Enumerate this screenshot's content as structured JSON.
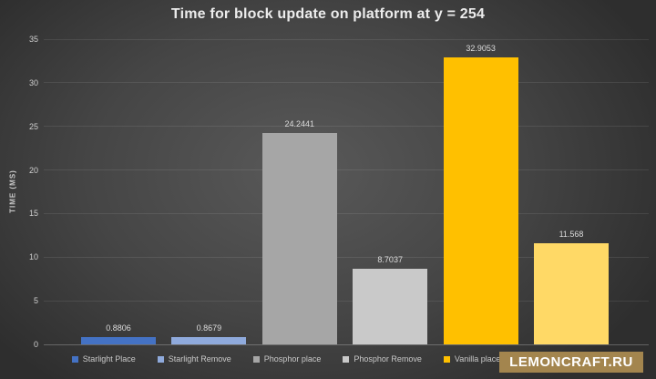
{
  "title": "Time for block update on platform at y = 254",
  "watermark": {
    "text": "LEMONCRAFT.RU",
    "background": "#A3854E",
    "text_color": "#FFFFFF"
  },
  "colors": {
    "background_center": "#595959",
    "background_edge": "#2E2E2E",
    "gridline": "rgba(255,255,255,0.09)",
    "axis_line": "rgba(255,255,255,0.25)",
    "text": "#D9D9D9"
  },
  "chart_data": {
    "type": "bar",
    "title": "Time for block update on platform at y = 254",
    "xlabel": "",
    "ylabel": "TIME (MS)",
    "ylim": [
      0,
      35
    ],
    "yticks": [
      0,
      5,
      10,
      15,
      20,
      25,
      30,
      35
    ],
    "grid": true,
    "legend_position": "bottom",
    "categories": [
      "Starlight Place",
      "Starlight Remove",
      "Phosphor place",
      "Phosphor Remove",
      "Vanilla place",
      ""
    ],
    "values": [
      0.8806,
      0.8679,
      24.2441,
      8.7037,
      32.9053,
      11.568
    ],
    "data_labels": [
      "0.8806",
      "0.8679",
      "24.2441",
      "8.7037",
      "32.9053",
      "11.568"
    ],
    "bar_colors": [
      "#4472C4",
      "#8FAADC",
      "#A6A6A6",
      "#C9C9C9",
      "#FFC000",
      "#FFD966"
    ],
    "legend": [
      {
        "label": "Starlight Place",
        "color": "#4472C4"
      },
      {
        "label": "Starlight Remove",
        "color": "#8FAADC"
      },
      {
        "label": "Phosphor place",
        "color": "#A6A6A6"
      },
      {
        "label": "Phosphor Remove",
        "color": "#C9C9C9"
      },
      {
        "label": "Vanilla place",
        "color": "#FFC000"
      },
      {
        "label": "",
        "color": "#FFD966"
      }
    ]
  }
}
